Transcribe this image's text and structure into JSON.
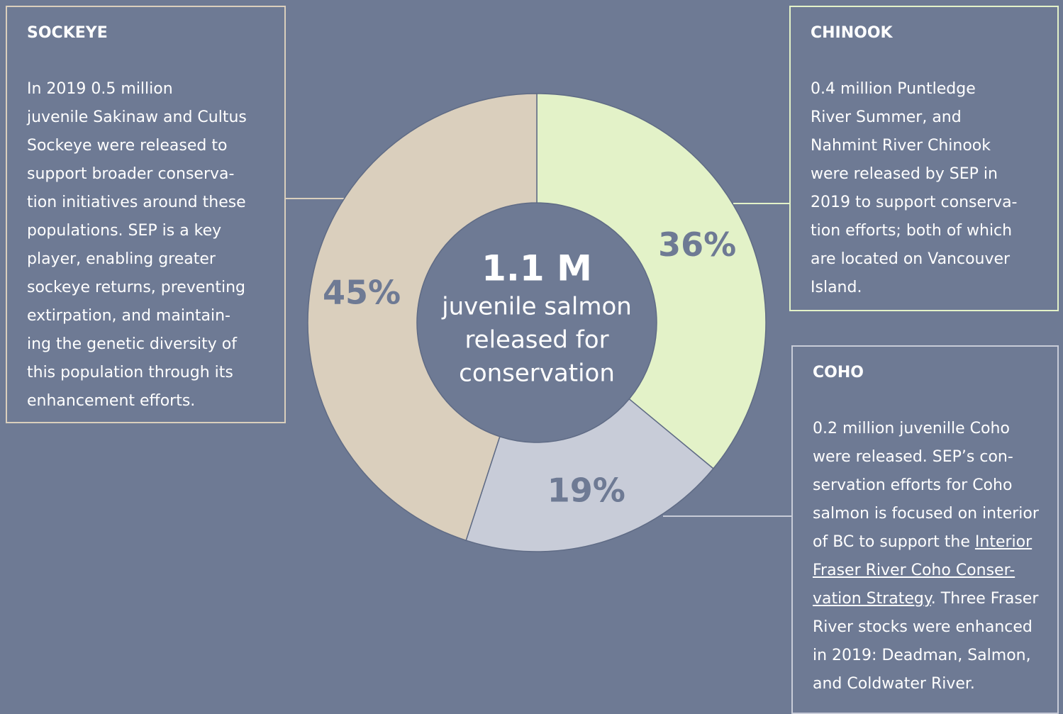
{
  "chart_data": {
    "type": "pie",
    "donut": true,
    "categories": [
      "CHINOOK",
      "COHO",
      "SOCKEYE"
    ],
    "values": [
      36,
      19,
      45
    ],
    "value_labels": [
      "36%",
      "19%",
      "45%"
    ],
    "colors": [
      "#e3f2c8",
      "#c8ccd8",
      "#dacfbd"
    ],
    "center_title": "1.1 M",
    "center_lines": [
      "juvenile salmon",
      "released for",
      "conservation"
    ],
    "annotations": [
      {
        "title": "CHINOOK",
        "lines": [
          "0.4 million Puntledge",
          "River Summer, and",
          "Nahmint River Chinook",
          "were released by SEP in",
          "2019 to support conserva-",
          "tion efforts; both of which",
          "are located on Vancouver",
          "Island."
        ]
      },
      {
        "title": "COHO",
        "lines": [
          "0.2 million juvenille Coho",
          "were released. SEP’s con-",
          "servation efforts for Coho",
          "salmon is focused on interior",
          [
            {
              "text": "of BC to support the "
            },
            {
              "text": "Interior ",
              "link": true
            }
          ],
          [
            {
              "text": "Fraser River Coho Conser-",
              "link": true
            }
          ],
          [
            {
              "text": "vation Strategy",
              "link": true
            },
            {
              "text": ". Three Fraser"
            }
          ],
          "River stocks were enhanced",
          "in 2019: Deadman, Salmon,",
          "and Coldwater River."
        ]
      },
      {
        "title": "SOCKEYE",
        "lines": [
          "In 2019 0.5 million",
          "juvenile Sakinaw and Cultus",
          "Sockeye were released to",
          "support broader conserva-",
          "tion initiatives around these",
          "populations. SEP is a key",
          "player, enabling greater",
          "sockeye returns, preventing",
          "extirpation, and maintain-",
          "ing the genetic diversity of",
          "this population through its",
          "enhancement efforts."
        ]
      }
    ]
  }
}
